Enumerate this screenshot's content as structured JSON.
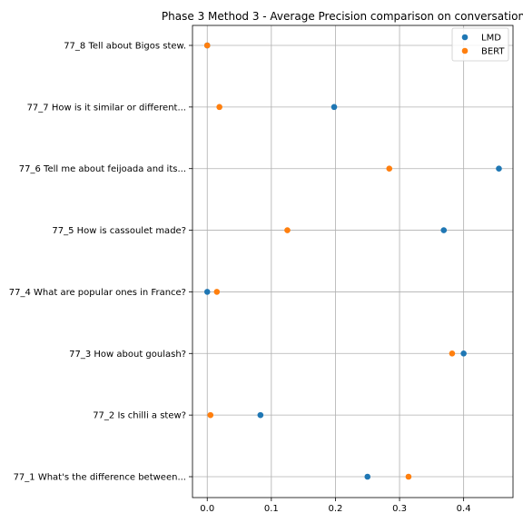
{
  "chart_data": {
    "type": "scatter",
    "title": "Phase 3 Method 3 - Average Precision comparison on conversation",
    "xlabel": "",
    "ylabel": "",
    "xlim": [
      -0.023,
      0.477
    ],
    "x_ticks": [
      0.0,
      0.1,
      0.2,
      0.3,
      0.4
    ],
    "x_tick_labels": [
      "0.0",
      "0.1",
      "0.2",
      "0.3",
      "0.4"
    ],
    "categories": [
      "77_1 What's the difference between...",
      "77_2 Is chilli a stew?",
      "77_3 How about goulash?",
      "77_4 What are popular ones in France?",
      "77_5 How is cassoulet made?",
      "77_6 Tell me about feijoada and its...",
      "77_7 How is it similar or different...",
      "77_8 Tell about Bigos stew."
    ],
    "series": [
      {
        "name": "LMD",
        "color": "#1f77b4",
        "values": [
          0.25,
          0.083,
          0.4,
          0.0,
          0.369,
          0.455,
          0.198,
          0.0
        ]
      },
      {
        "name": "BERT",
        "color": "#ff7f0e",
        "values": [
          0.314,
          0.005,
          0.382,
          0.015,
          0.125,
          0.284,
          0.019,
          0.0
        ]
      }
    ],
    "grid": true,
    "legend_position": "top-right"
  }
}
